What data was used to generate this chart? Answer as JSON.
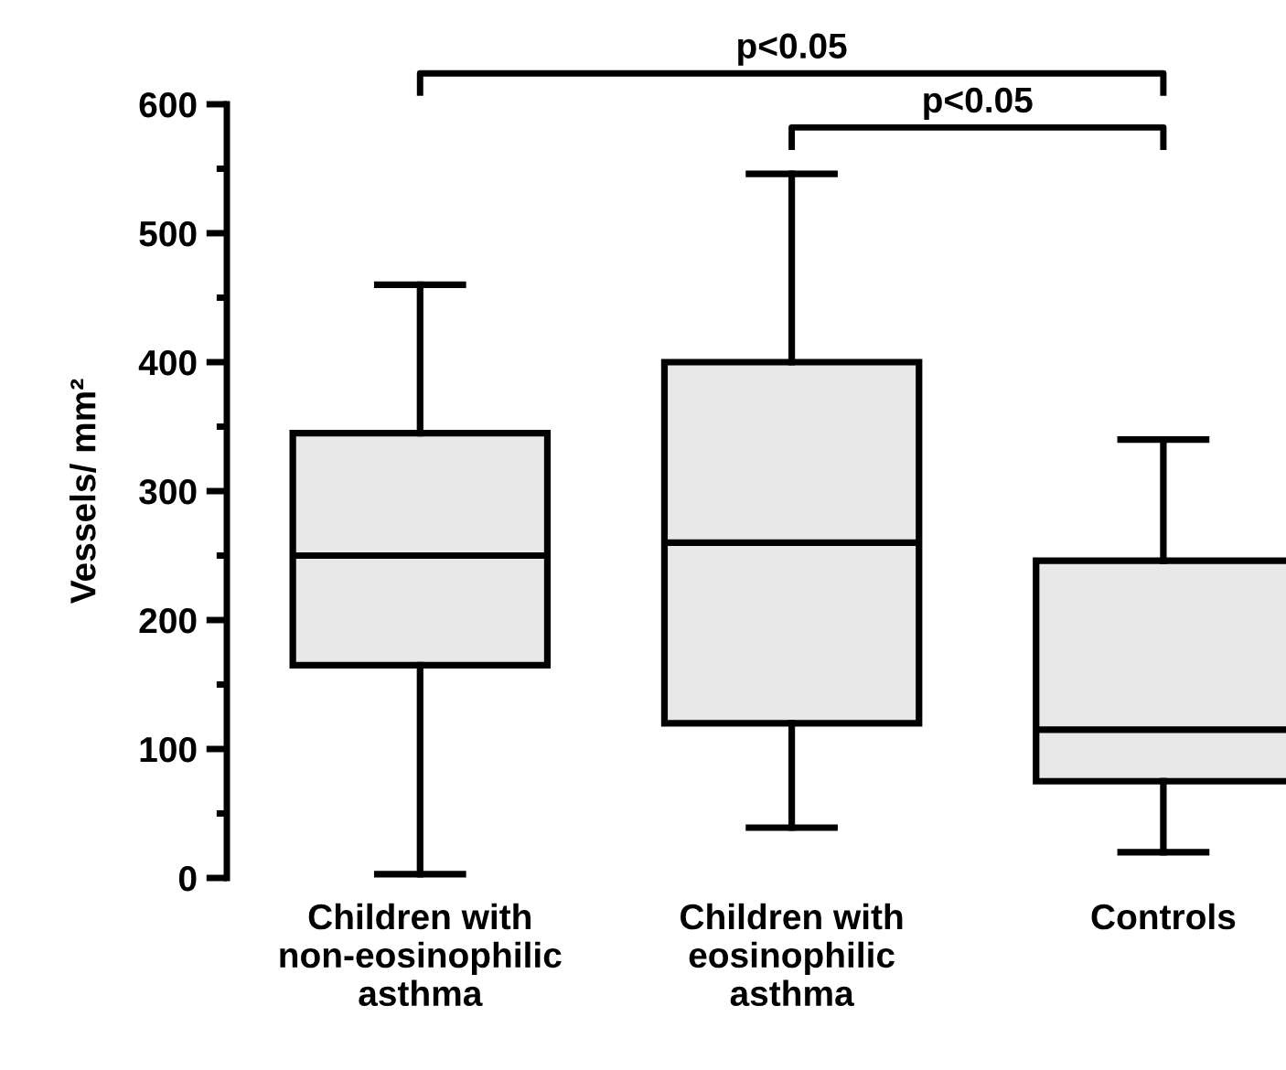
{
  "chart_data": {
    "type": "box",
    "ylabel": "Vessels/ mm²",
    "categories": [
      "Children with\nnon-eosinophilic\nasthma",
      "Children with\neosinophilic\nasthma",
      "Controls"
    ],
    "boxes": [
      {
        "low": 3,
        "q1": 165,
        "median": 250,
        "q3": 345,
        "high": 460
      },
      {
        "low": 39,
        "q1": 120,
        "median": 260,
        "q3": 400,
        "high": 546
      },
      {
        "low": 20,
        "q1": 75,
        "median": 115,
        "q3": 246,
        "high": 340
      }
    ],
    "color": "#e8e8e8",
    "ylim": [
      0,
      600
    ],
    "yticks": [
      0,
      100,
      200,
      300,
      400,
      500,
      600
    ],
    "grid": false,
    "annotations": [
      "p<0.05",
      "p<0.05"
    ]
  }
}
